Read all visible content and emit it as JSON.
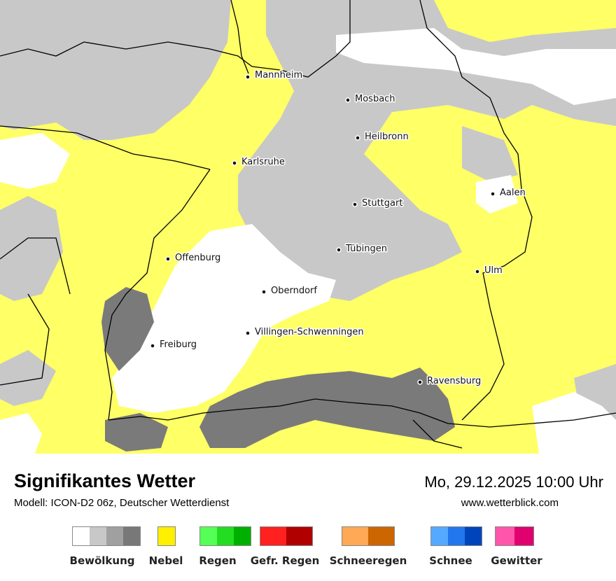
{
  "footer": {
    "title": "Signifikantes Wetter",
    "model": "Modell: ICON-D2 06z, Deutscher Wetterdienst",
    "datetime": "Mo, 29.12.2025 10:00 Uhr",
    "website": "www.wetterblick.com"
  },
  "legend": [
    {
      "label": "Bewölkung",
      "colors": [
        "#ffffff",
        "#c8c8c8",
        "#a0a0a0",
        "#787878"
      ]
    },
    {
      "label": "Nebel",
      "colors": [
        "#ffef00"
      ]
    },
    {
      "label": "Regen",
      "colors": [
        "#55ff55",
        "#22dd22",
        "#00b000"
      ]
    },
    {
      "label": "Gefr. Regen",
      "colors": [
        "#ff2020",
        "#b00000"
      ]
    },
    {
      "label": "Schneeregen",
      "colors": [
        "#ffa855",
        "#cc6600"
      ]
    },
    {
      "label": "Schnee",
      "colors": [
        "#55aaff",
        "#2277ee",
        "#0044bb"
      ]
    },
    {
      "label": "Gewitter",
      "colors": [
        "#ff55aa",
        "#e0006e"
      ]
    }
  ],
  "map": {
    "colors": {
      "nebel": "#ffff66",
      "cloud_light": "#c8c8c8",
      "cloud_dark": "#7a7a7a",
      "clear": "#ffffff",
      "border": "#000000"
    },
    "cities": [
      {
        "name": "Mannheim"
      },
      {
        "name": "Mosbach"
      },
      {
        "name": "Heilbronn"
      },
      {
        "name": "Karlsruhe"
      },
      {
        "name": "Aalen"
      },
      {
        "name": "Stuttgart"
      },
      {
        "name": "Tübingen"
      },
      {
        "name": "Offenburg"
      },
      {
        "name": "Ulm"
      },
      {
        "name": "Oberndorf"
      },
      {
        "name": "Villingen-Schwenningen"
      },
      {
        "name": "Freiburg"
      },
      {
        "name": "Ravensburg"
      }
    ]
  }
}
